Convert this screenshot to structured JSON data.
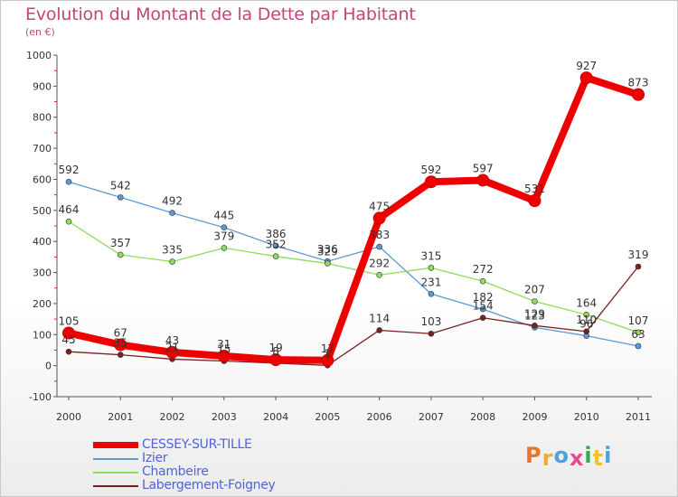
{
  "title": "Evolution du Montant de la Dette par Habitant",
  "subtitle": "(en €)",
  "logo_text": "Proxiti",
  "logo_colors": [
    "#e8732a",
    "#f2a93b",
    "#4aa3df",
    "#e84c8a",
    "#3aa655",
    "#f2c12e",
    "#4aa3df"
  ],
  "chart_data": {
    "type": "line",
    "title": "Evolution du Montant de la Dette par Habitant",
    "subtitle": "(en €)",
    "x": [
      2000,
      2001,
      2002,
      2003,
      2004,
      2005,
      2006,
      2007,
      2008,
      2009,
      2010,
      2011
    ],
    "ylim": [
      -100,
      1000
    ],
    "yticks": [
      -100,
      0,
      100,
      200,
      300,
      400,
      500,
      600,
      700,
      800,
      900,
      1000
    ],
    "grid": false,
    "legend_position": "bottom-left",
    "series": [
      {
        "name": "Izier",
        "color": "#5b9bd5",
        "values": [
          592,
          542,
          492,
          445,
          386,
          336,
          383,
          231,
          182,
          123,
          96,
          63
        ],
        "labels": [
          "592",
          "542",
          "492",
          "445",
          "386",
          "336",
          "383",
          "231",
          "182",
          "123",
          "96",
          "63"
        ]
      },
      {
        "name": "Chambeire",
        "color": "#8fdc5a",
        "values": [
          464,
          357,
          335,
          379,
          352,
          329,
          292,
          315,
          272,
          207,
          164,
          107
        ],
        "labels": [
          "464",
          "357",
          "335",
          "379",
          "352",
          "329",
          "292",
          "315",
          "272",
          "207",
          "164",
          "107"
        ]
      },
      {
        "name": "Labergement-Foigney",
        "color": "#7a1f1f",
        "values": [
          45,
          35,
          21,
          15,
          8,
          1,
          114,
          103,
          154,
          129,
          110,
          319
        ],
        "labels": [
          "45",
          "35",
          "21",
          "15",
          "8",
          "1",
          "114",
          "103",
          "154",
          "129",
          "110",
          "319"
        ]
      },
      {
        "name": "CESSEY-SUR-TILLE",
        "color": "#ee0000",
        "values": [
          105,
          67,
          43,
          31,
          19,
          17,
          475,
          592,
          597,
          531,
          927,
          873
        ],
        "labels": [
          "105",
          "67",
          "43",
          "31",
          "19",
          "17",
          "475",
          "592",
          "597",
          "531",
          "927",
          "873"
        ]
      }
    ],
    "legend": [
      {
        "name": "CESSEY-SUR-TILLE",
        "color": "#ee0000"
      },
      {
        "name": "Izier",
        "color": "#5b9bd5"
      },
      {
        "name": "Chambeire",
        "color": "#8fdc5a"
      },
      {
        "name": "Labergement-Foigney",
        "color": "#7a1f1f"
      }
    ]
  }
}
